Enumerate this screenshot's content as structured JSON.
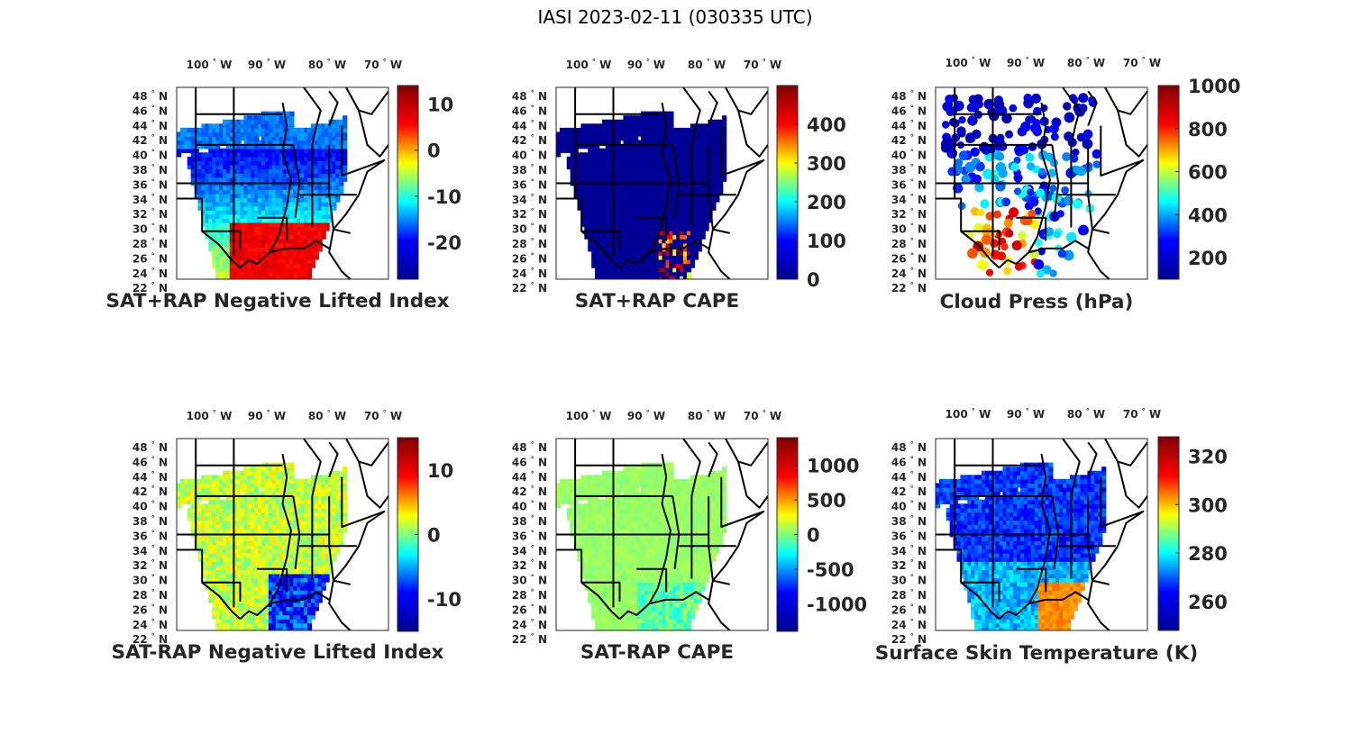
{
  "title": "IASI 2023-02-11 (030335 UTC)",
  "lon_labels": [
    "100",
    "90",
    "80",
    "70"
  ],
  "lat_labels": [
    "48",
    "46",
    "44",
    "42",
    "40",
    "38",
    "36",
    "34",
    "32",
    "30",
    "28",
    "26",
    "24",
    "22"
  ],
  "lon_hemisphere": "W",
  "lat_hemisphere": "N",
  "degree_symbol": "°",
  "colormap": "jet",
  "colormap_stops": [
    "#00008f",
    "#0000ff",
    "#00ffff",
    "#ffff00",
    "#ff0000",
    "#800000"
  ],
  "panels": [
    {
      "id": "sat-rap-plus-li",
      "title": "SAT+RAP Negative Lifted Index",
      "colorbar_range": [
        -28,
        14
      ],
      "colorbar_ticks": [
        "10",
        "0",
        "-10",
        "-20"
      ],
      "colorbar_values": [
        10,
        0,
        -10,
        -20
      ],
      "swath": "li"
    },
    {
      "id": "sat-rap-plus-cape",
      "title": "SAT+RAP CAPE",
      "colorbar_range": [
        0,
        500
      ],
      "colorbar_ticks": [
        "400",
        "300",
        "200",
        "100",
        "0"
      ],
      "colorbar_values": [
        400,
        300,
        200,
        100,
        0
      ],
      "swath": "cape"
    },
    {
      "id": "cloud-press",
      "title": "Cloud Press (hPa)",
      "colorbar_range": [
        100,
        1000
      ],
      "colorbar_ticks": [
        "1000",
        "800",
        "600",
        "400",
        "200"
      ],
      "colorbar_values": [
        1000,
        800,
        600,
        400,
        200
      ],
      "swath": "cloud"
    },
    {
      "id": "sat-minus-rap-li",
      "title": "SAT-RAP Negative Lifted Index",
      "colorbar_range": [
        -15,
        15
      ],
      "colorbar_ticks": [
        "10",
        "0",
        "-10"
      ],
      "colorbar_values": [
        10,
        0,
        -10
      ],
      "swath": "dli"
    },
    {
      "id": "sat-minus-rap-cape",
      "title": "SAT-RAP CAPE",
      "colorbar_range": [
        -1400,
        1400
      ],
      "colorbar_ticks": [
        "1000",
        "500",
        "0",
        "-500",
        "-1000"
      ],
      "colorbar_values": [
        1000,
        500,
        0,
        -500,
        -1000
      ],
      "swath": "dcape"
    },
    {
      "id": "skin-temp",
      "title": "Surface Skin Temperature (K)",
      "colorbar_range": [
        248,
        328
      ],
      "colorbar_ticks": [
        "320",
        "300",
        "280",
        "260"
      ],
      "colorbar_values": [
        320,
        300,
        280,
        260
      ],
      "swath": "skin"
    }
  ]
}
